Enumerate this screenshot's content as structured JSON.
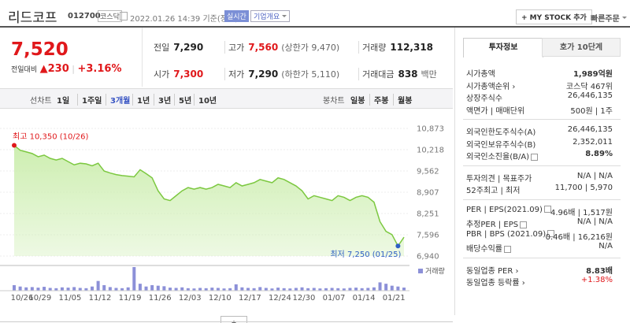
{
  "header": {
    "name": "리드코프",
    "code": "012700",
    "market": "코스닥",
    "datetime": "2022.01.26 14:39",
    "basis": "기준(장중)",
    "realtime": "실시간",
    "company": "기업개요",
    "my_stock": "+ MY STOCK 추가",
    "quick_order": "빠른주문"
  },
  "quote": {
    "price": "7,520",
    "change_label": "전일대비",
    "change_arrow": "▲",
    "change": "230",
    "change_pct": "+3.16%"
  },
  "summary": {
    "rows": [
      [
        {
          "label": "전일",
          "value": "7,290"
        },
        {
          "label": "고가",
          "value": "7,560",
          "note": "(상한가 9,470)",
          "color": "#e0181b"
        },
        {
          "label": "거래량",
          "value": "112,318"
        }
      ],
      [
        {
          "label": "시가",
          "value": "7,300",
          "color": "#e0181b"
        },
        {
          "label": "저가",
          "value": "7,290",
          "note": "(하한가 5,110)"
        },
        {
          "label": "거래대금",
          "value": "838",
          "note": "백만"
        }
      ]
    ]
  },
  "chart_tabs": {
    "line_label": "선차트",
    "periods": [
      "1일",
      "1주일",
      "3개월",
      "1년",
      "3년",
      "5년",
      "10년"
    ],
    "active": 2,
    "candle_label": "봉차트",
    "candle_periods": [
      "일봉",
      "주봉",
      "월봉"
    ]
  },
  "chart_data": {
    "type": "line",
    "color": "#7cc840",
    "fill": "#cdeeb0",
    "categories": [
      "10/26",
      null,
      null,
      "10/29",
      null,
      null,
      null,
      null,
      "11/05",
      null,
      null,
      null,
      null,
      "11/12",
      null,
      null,
      null,
      null,
      "11/19",
      null,
      null,
      null,
      null,
      "11/26",
      null,
      null,
      null,
      null,
      "12/03",
      null,
      null,
      null,
      null,
      "12/10",
      null,
      null,
      null,
      null,
      "12/17",
      null,
      null,
      null,
      null,
      "12/24",
      null,
      null,
      null,
      "12/30",
      null,
      null,
      null,
      null,
      "01/07",
      null,
      null,
      null,
      null,
      "01/14",
      null,
      null,
      null,
      null,
      "01/21",
      null,
      null,
      null
    ],
    "values": [
      10350,
      10200,
      10150,
      10100,
      10000,
      10050,
      9950,
      9900,
      9950,
      9850,
      9750,
      9800,
      9780,
      9720,
      9800,
      9560,
      9500,
      9450,
      9420,
      9400,
      9380,
      9600,
      9480,
      9350,
      8950,
      8700,
      8650,
      8800,
      8950,
      9050,
      9000,
      9050,
      9000,
      9050,
      9150,
      9100,
      9050,
      9200,
      9100,
      9150,
      9200,
      9300,
      9250,
      9200,
      9350,
      9300,
      9200,
      9100,
      8950,
      8700,
      8800,
      8750,
      8700,
      8650,
      8800,
      8750,
      8650,
      8750,
      8800,
      8750,
      8600,
      8000,
      7700,
      7600,
      7250,
      7520
    ],
    "ylim": [
      6940,
      10873
    ],
    "yticks": [
      {
        "value": 6940,
        "label": "6,940"
      },
      {
        "value": 7596,
        "label": "7,596"
      },
      {
        "value": 8251,
        "label": "8,251"
      },
      {
        "value": 8907,
        "label": "8,907"
      },
      {
        "value": 9562,
        "label": "9,562"
      },
      {
        "value": 10218,
        "label": "10,218"
      },
      {
        "value": 10873,
        "label": "10,873"
      }
    ],
    "grid": true,
    "high_label": "최고 10,350 (10/26)",
    "high_color": "#e0181b",
    "low_label": "최저 7,250 (01/25)",
    "low_color": "#2d5fc4",
    "volume": {
      "label": "거래량",
      "color": "#8c90d8",
      "values": [
        200000,
        150000,
        120000,
        130000,
        110000,
        140000,
        100000,
        90000,
        120000,
        110000,
        130000,
        100000,
        90000,
        150000,
        350000,
        200000,
        130000,
        100000,
        90000,
        120000,
        850000,
        250000,
        150000,
        200000,
        180000,
        160000,
        110000,
        100000,
        120000,
        90000,
        80000,
        100000,
        90000,
        110000,
        100000,
        80000,
        90000,
        230000,
        120000,
        100000,
        90000,
        130000,
        100000,
        80000,
        110000,
        90000,
        80000,
        100000,
        120000,
        90000,
        100000,
        80000,
        90000,
        100000,
        90000,
        80000,
        100000,
        110000,
        90000,
        100000,
        120000,
        300000,
        250000,
        180000,
        150000,
        112318
      ]
    }
  },
  "invest_info": {
    "tabs": [
      "투자정보",
      "호가 10단계"
    ],
    "groups": [
      [
        {
          "label": "시가총액",
          "value": "1,989억원",
          "bold": true
        },
        {
          "label": "시가총액순위 ›",
          "value": "코스닥 467위"
        },
        {
          "label": "상장주식수",
          "value": "26,446,135"
        },
        {
          "label": "액면가 | 매매단위",
          "value": "500원 | 1주"
        }
      ],
      [
        {
          "label": "외국인한도주식수(A)",
          "value": "26,446,135"
        },
        {
          "label": "외국인보유주식수(B)",
          "value": "2,352,011"
        },
        {
          "label": "외국인소진율(B/A)",
          "help": true,
          "value": "8.89%",
          "bold": true
        }
      ],
      [
        {
          "label": "투자의견 | 목표주가",
          "value": "N/A | N/A"
        },
        {
          "label": "52주최고 | 최저",
          "value": "11,700 | 5,970"
        }
      ],
      [
        {
          "label": "PER | EPS(2021.09)",
          "help": true,
          "value": "4.96배 | 1,517원"
        },
        {
          "label": "추정PER | EPS",
          "help": true,
          "value": "N/A | N/A"
        },
        {
          "label": "PBR | BPS (2021.09)",
          "help": true,
          "value": "0.46배 | 16,216원"
        },
        {
          "label": "배당수익률",
          "help": true,
          "value": "N/A"
        }
      ],
      [
        {
          "label": "동일업종 PER ›",
          "value": "8.83배",
          "bold": true
        },
        {
          "label": "동일업종 등락률 ›",
          "value": "+1.38%",
          "color": "#e0181b"
        }
      ]
    ]
  }
}
